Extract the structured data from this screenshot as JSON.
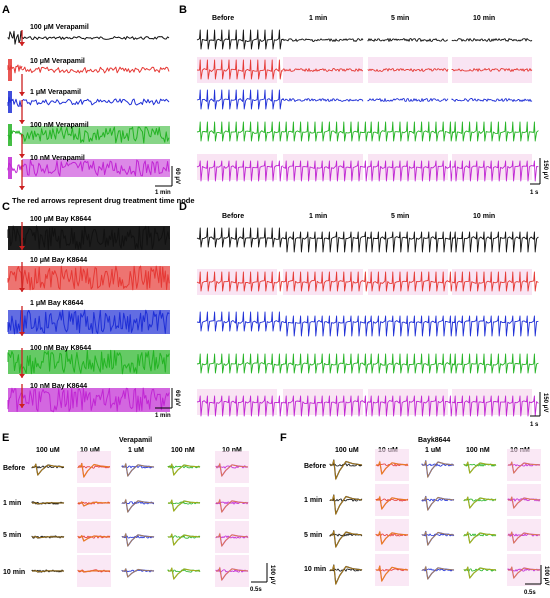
{
  "colors": {
    "black": "#111111",
    "red": "#e53935",
    "blue": "#1f2fd6",
    "green": "#24b324",
    "magenta": "#c026d3",
    "arrow": "#cc1f1f",
    "fit": "#e8a51a",
    "pink_bg": "#f6d9ee"
  },
  "panel_letters": {
    "a": "A",
    "b": "B",
    "c": "C",
    "d": "D",
    "e": "E",
    "f": "F"
  },
  "panelA": {
    "labels": [
      "100 μM Verapamil",
      "10 μM Verapamil",
      "1 μM Verapamil",
      "100 nM Verapamil",
      "10 nM Verapamil"
    ],
    "scale_v": "60 μV",
    "scale_t": "1 min"
  },
  "note": "The red arrows represent drug treatment time node",
  "panelB": {
    "headers": [
      "Before",
      "1 min",
      "5 min",
      "10 min"
    ],
    "scale_v": "150 μV",
    "scale_t": "1 s"
  },
  "panelC": {
    "labels": [
      "100 μM Bay K8644",
      "10 μM Bay K8644",
      "1 μM Bay K8644",
      "100 nM Bay K8644",
      "10 nM Bay K8644"
    ],
    "scale_v": "60 μV",
    "scale_t": "1 min"
  },
  "panelD": {
    "headers": [
      "Before",
      "1 min",
      "5 min",
      "10 min"
    ],
    "scale_v": "150 μV",
    "scale_t": "1 s"
  },
  "panelE": {
    "title": "Verapamil",
    "columns": [
      "100 uM",
      "10 uM",
      "1 uM",
      "100 nM",
      "10 nM"
    ],
    "rows": [
      "Before",
      "1 min",
      "5 min",
      "10 min"
    ],
    "scale_v": "100 μV",
    "scale_t": "0.5s"
  },
  "panelF": {
    "title": "Bayk8644",
    "columns": [
      "100 uM",
      "10 uM",
      "1 uM",
      "100 nM",
      "10 nM"
    ],
    "rows": [
      "Before",
      "1 min",
      "5 min",
      "10 min"
    ],
    "scale_v": "100 μV",
    "scale_t": "0.5s"
  }
}
